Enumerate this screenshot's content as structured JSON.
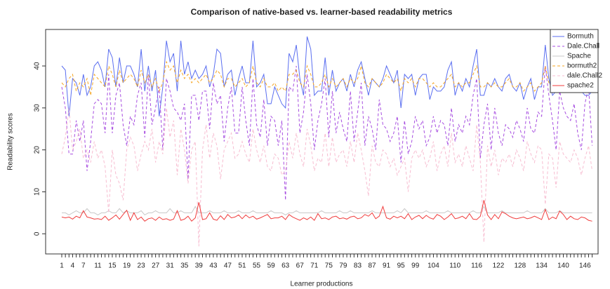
{
  "chart_data": {
    "type": "line",
    "title": "Comparison of native-based vs. learner-based readability metrics",
    "x_label": "Learner productions",
    "y_label": "Readability scores",
    "categories": [
      "1",
      null,
      null,
      "4",
      null,
      null,
      "7",
      null,
      null,
      null,
      "11",
      null,
      null,
      null,
      "15",
      null,
      null,
      null,
      "19",
      null,
      null,
      null,
      "23",
      null,
      null,
      null,
      "27",
      null,
      null,
      null,
      "31",
      null,
      null,
      null,
      "35",
      null,
      null,
      null,
      "39",
      null,
      null,
      null,
      "43",
      null,
      null,
      null,
      "47",
      null,
      null,
      null,
      "51",
      null,
      null,
      null,
      "55",
      null,
      null,
      null,
      "59",
      null,
      null,
      null,
      "63",
      null,
      null,
      null,
      "67",
      null,
      null,
      null,
      "71",
      null,
      null,
      null,
      "75",
      null,
      null,
      null,
      "79",
      null,
      null,
      null,
      "83",
      null,
      null,
      null,
      "87",
      null,
      null,
      null,
      "91",
      null,
      null,
      null,
      "95",
      null,
      null,
      null,
      "99",
      null,
      null,
      null,
      null,
      "104",
      null,
      null,
      null,
      null,
      null,
      "110",
      null,
      null,
      null,
      null,
      null,
      "116",
      null,
      null,
      null,
      null,
      null,
      "122",
      null,
      null,
      null,
      null,
      null,
      "128",
      null,
      null,
      null,
      null,
      null,
      "134",
      null,
      null,
      null,
      null,
      null,
      "140",
      null,
      null,
      null,
      null,
      null,
      "146",
      null,
      null
    ],
    "ylim": [
      -4.8,
      48.7
    ],
    "yticks": [
      0,
      10,
      20,
      30,
      40
    ],
    "legend": "topright",
    "series": [
      {
        "name": "Bormuth",
        "color": "#5a6ef0",
        "linestyle": "solid",
        "values": [
          40,
          39,
          28,
          37,
          36,
          33,
          38,
          33,
          35,
          40,
          41,
          39,
          35,
          44,
          42,
          35,
          42,
          36,
          40,
          40,
          38,
          35,
          44,
          34,
          40,
          34,
          39,
          28,
          35,
          46,
          41,
          43,
          34,
          46,
          38,
          41,
          37,
          39,
          37,
          38,
          40,
          35,
          38,
          44,
          43,
          35,
          38,
          39,
          33,
          37,
          40,
          36,
          36,
          46,
          35,
          36,
          38,
          31,
          31,
          35,
          33,
          31,
          30,
          43,
          41,
          45,
          37,
          33,
          47,
          44,
          33,
          34,
          34,
          42,
          33,
          39,
          34,
          36,
          37,
          34,
          38,
          35,
          39,
          41,
          37,
          33,
          37,
          36,
          35,
          37,
          40,
          38,
          36,
          39,
          30,
          38,
          37,
          38,
          33,
          37,
          38,
          38,
          32,
          35,
          34,
          34,
          35,
          39,
          41,
          33,
          36,
          34,
          37,
          35,
          40,
          44,
          33,
          33,
          36,
          35,
          37,
          35,
          34,
          37,
          38,
          35,
          34,
          36,
          32,
          35,
          37,
          32,
          35,
          35,
          45,
          37,
          33,
          34,
          41,
          35,
          35,
          34,
          36,
          36,
          34,
          33,
          33,
          34
        ]
      },
      {
        "name": "Dale.Chall",
        "color": "#a64ce0",
        "linestyle": "dashed",
        "values": [
          35,
          30,
          19,
          19,
          27,
          22,
          27,
          15,
          22,
          31,
          32,
          31,
          24,
          38,
          24,
          33,
          36,
          26,
          21,
          28,
          26,
          33,
          36,
          23,
          38,
          26,
          30,
          35,
          20,
          37,
          34,
          30,
          29,
          27,
          31,
          13,
          33,
          33,
          27,
          34,
          34,
          25,
          36,
          31,
          33,
          22,
          30,
          35,
          24,
          24,
          35,
          27,
          21,
          37,
          26,
          23,
          32,
          21,
          28,
          27,
          21,
          27,
          8,
          35,
          34,
          40,
          24,
          29,
          38,
          31,
          20,
          27,
          31,
          37,
          23,
          34,
          24,
          29,
          25,
          22,
          34,
          22,
          29,
          36,
          21,
          28,
          25,
          20,
          32,
          26,
          25,
          22,
          24,
          28,
          17,
          27,
          19,
          22,
          28,
          25,
          27,
          21,
          23,
          28,
          24,
          27,
          26,
          21,
          30,
          22,
          26,
          24,
          28,
          26,
          33,
          37,
          18,
          26,
          31,
          20,
          30,
          24,
          21,
          26,
          25,
          23,
          27,
          25,
          22,
          30,
          25,
          24,
          29,
          28,
          40,
          33,
          27,
          20,
          34,
          30,
          28,
          27,
          31,
          24,
          20,
          31,
          35,
          21
        ]
      },
      {
        "name": "Spache",
        "color": "#c8c8c8",
        "linestyle": "solid",
        "values": [
          5,
          5,
          4.5,
          5,
          5.5,
          5,
          5,
          6,
          5,
          5,
          4.5,
          5,
          5,
          5.5,
          5,
          5,
          6,
          5,
          5.5,
          5,
          5,
          5,
          5.5,
          4.5,
          5,
          5,
          5.5,
          5,
          5,
          5,
          6,
          5,
          5,
          5.5,
          5,
          5,
          5,
          6.5,
          5,
          5,
          5,
          5.5,
          5,
          5,
          5,
          5.5,
          5,
          5,
          5,
          5.5,
          5,
          5,
          5,
          5.5,
          5,
          5,
          5,
          5,
          5.5,
          5,
          5,
          5,
          4.5,
          5,
          5,
          5.5,
          5,
          5,
          5,
          5,
          5,
          5,
          5.5,
          5,
          5,
          5,
          5,
          5.5,
          5,
          5,
          5.5,
          5,
          5,
          5,
          5,
          5,
          5.5,
          5,
          5,
          5,
          5,
          5,
          5,
          5.5,
          5,
          6,
          5,
          5,
          5,
          5,
          5,
          5.5,
          5,
          5,
          5,
          5,
          5,
          5.5,
          5,
          5,
          5,
          5,
          5,
          5,
          5.5,
          5,
          5,
          6.5,
          5,
          5,
          5,
          5,
          5.5,
          5,
          5,
          5,
          5,
          5,
          5,
          5.5,
          5,
          5,
          5,
          5,
          6,
          5,
          5,
          5,
          5.5,
          5,
          5,
          5,
          5,
          5,
          5,
          5,
          5,
          5
        ]
      },
      {
        "name": "bormuth2",
        "color": "#f5a623",
        "linestyle": "dashed",
        "values": [
          36,
          35,
          37,
          38,
          34,
          36,
          35,
          37,
          33,
          38,
          37,
          36,
          35,
          40,
          38,
          35,
          39,
          36,
          37,
          38,
          37,
          35,
          39,
          36,
          38,
          35,
          37,
          34,
          36,
          41,
          39,
          40,
          36,
          39,
          37,
          38,
          36,
          37,
          36,
          37,
          38,
          36,
          37,
          39,
          38,
          35,
          37,
          37,
          35,
          36,
          37,
          35,
          36,
          40,
          36,
          35,
          37,
          35,
          35,
          36,
          34,
          35,
          34,
          38,
          38,
          39,
          36,
          35,
          40,
          38,
          35,
          35,
          36,
          38,
          35,
          37,
          35,
          36,
          37,
          35,
          37,
          36,
          37,
          40,
          36,
          35,
          37,
          36,
          35,
          36,
          38,
          37,
          36,
          37,
          34,
          37,
          36,
          37,
          35,
          37,
          37,
          36,
          35,
          36,
          35,
          35,
          36,
          37,
          38,
          35,
          36,
          35,
          36,
          36,
          38,
          40,
          35,
          35,
          36,
          35,
          36,
          35,
          35,
          36,
          37,
          35,
          35,
          36,
          34,
          35,
          36,
          34,
          35,
          36,
          40,
          36,
          35,
          35,
          38,
          36,
          35,
          35,
          36,
          36,
          35,
          34,
          34,
          35
        ]
      },
      {
        "name": "dale.Chall2",
        "color": "#f7bcd0",
        "linestyle": "dashed",
        "values": [
          19,
          23,
          30,
          20,
          22,
          25,
          18,
          20,
          17,
          22,
          18,
          20,
          16,
          5,
          20,
          14,
          12,
          8,
          20,
          23,
          21,
          15,
          19,
          22,
          20,
          25,
          17,
          22,
          19,
          30,
          23,
          27,
          14,
          25,
          20,
          12,
          20,
          22,
          -3,
          20,
          26,
          18,
          24,
          21,
          13,
          20,
          22,
          24,
          18,
          19,
          22,
          19,
          17,
          25,
          20,
          17,
          21,
          16,
          15,
          19,
          18,
          14,
          15,
          22,
          18,
          24,
          19,
          16,
          25,
          21,
          15,
          18,
          17,
          24,
          16,
          23,
          17,
          19,
          20,
          16,
          22,
          17,
          24,
          20,
          15,
          9,
          21,
          17,
          16,
          20,
          19,
          16,
          18,
          14,
          16,
          18,
          10,
          18,
          20,
          18,
          20,
          16,
          18,
          22,
          15,
          19,
          21,
          16,
          24,
          17,
          19,
          16,
          21,
          18,
          15,
          26,
          17,
          -2,
          21,
          16,
          20,
          14,
          18,
          17,
          19,
          16,
          20,
          18,
          15,
          22,
          19,
          17,
          21,
          20,
          7,
          19,
          18,
          11,
          22,
          19,
          18,
          17,
          20,
          18,
          14,
          18,
          21,
          15
        ]
      },
      {
        "name": "spache2",
        "color": "#f03c3c",
        "linestyle": "solid",
        "values": [
          4,
          3.8,
          4,
          3.5,
          4.2,
          3.8,
          5.5,
          4,
          3.8,
          3.5,
          3.6,
          3.4,
          4.2,
          3.2,
          3.8,
          4.5,
          3.5,
          4.6,
          5.6,
          3.2,
          5,
          3.4,
          4,
          3,
          3.6,
          3.8,
          3.2,
          4,
          3.4,
          3.6,
          3.2,
          3.5,
          5.5,
          3.2,
          3.5,
          4.2,
          3,
          3.8,
          7.5,
          3.4,
          3.6,
          5,
          3.5,
          3.2,
          4.3,
          3.4,
          4.6,
          3.8,
          4,
          4.5,
          3.6,
          4.5,
          3.8,
          4.2,
          3.5,
          3.8,
          4.2,
          4.6,
          3.6,
          3.8,
          3.8,
          4.2,
          3.4,
          4.6,
          4,
          3.6,
          3.2,
          3.8,
          3.4,
          4,
          3.2,
          4.8,
          3.6,
          3.8,
          3.4,
          4,
          4.2,
          3.6,
          3.8,
          3.5,
          4,
          4.2,
          3.6,
          3.8,
          4.6,
          4.2,
          5,
          3.6,
          4.2,
          6.5,
          3.8,
          3.5,
          4.2,
          3.8,
          4.2,
          3.6,
          4.8,
          3.4,
          4,
          4.4,
          3.6,
          4.4,
          3.8,
          3.5,
          4.6,
          4.2,
          3.4,
          4,
          4.8,
          3.6,
          3.8,
          4.2,
          3.6,
          4.8,
          3.5,
          3.4,
          4.2,
          8,
          4.5,
          3.4,
          4.6,
          3.6,
          5.2,
          4.8,
          4.2,
          3.8,
          3.6,
          3.8,
          4,
          3.6,
          3.8,
          4.2,
          3.8,
          3.4,
          5.8,
          3.4,
          4,
          3.6,
          5.4,
          4.6,
          3.4,
          4.2,
          3.6,
          3.4,
          4,
          3.8,
          3.2,
          3
        ]
      }
    ]
  }
}
